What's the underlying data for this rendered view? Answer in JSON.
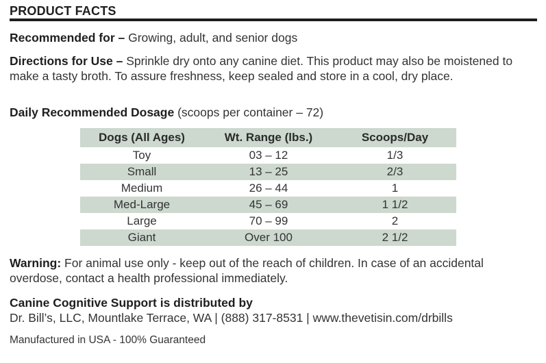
{
  "header": {
    "title": "PRODUCT FACTS"
  },
  "recommended": {
    "label": "Recommended for –",
    "text": " Growing, adult, and senior dogs"
  },
  "directions": {
    "label": "Directions for Use –",
    "text": " Sprinkle dry onto any canine diet. This product may also be moistened to make a tasty broth. To assure freshness, keep sealed and store in a cool, dry place."
  },
  "dosage": {
    "label": "Daily Recommended Dosage",
    "text": " (scoops per container – 72)",
    "table": {
      "headers": [
        "Dogs (All Ages)",
        "Wt. Range (lbs.)",
        "Scoops/Day"
      ],
      "rows": [
        [
          "Toy",
          "03 – 12",
          "1/3"
        ],
        [
          "Small",
          "13 – 25",
          "2/3"
        ],
        [
          "Medium",
          "26 – 44",
          "1"
        ],
        [
          "Med-Large",
          "45 – 69",
          "1 1/2"
        ],
        [
          "Large",
          "70 – 99",
          "2"
        ],
        [
          "Giant",
          "Over 100",
          "2 1/2"
        ]
      ]
    }
  },
  "warning": {
    "label": "Warning:",
    "text": " For animal use only - keep out of the reach of children. In case of an accidental overdose, contact a health professional immediately."
  },
  "distributor": {
    "heading": "Canine Cognitive Support is distributed by",
    "details": "Dr. Bill’s, LLC, Mountlake Terrace, WA | (888) 317-8531 | www.thevetisin.com/drbills"
  },
  "footer": {
    "manufactured": "Manufactured in USA - 100% Guaranteed"
  }
}
